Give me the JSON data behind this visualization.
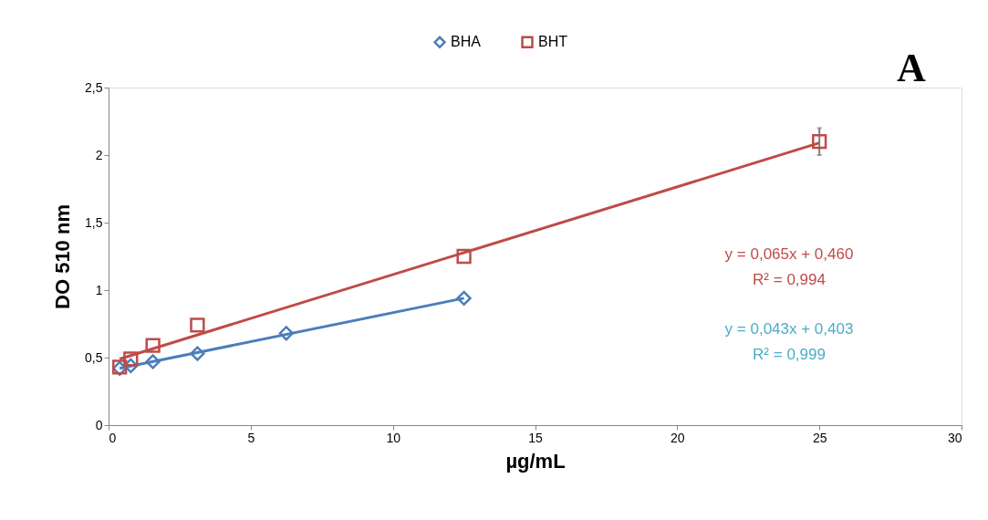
{
  "chart_data": {
    "type": "scatter",
    "title": "A",
    "xlabel": "µg/mL",
    "ylabel": "DO 510 nm",
    "xlim": [
      0,
      30
    ],
    "xticks": [
      0,
      5,
      10,
      15,
      20,
      25,
      30
    ],
    "ylim": [
      0,
      2.5
    ],
    "yticks": [
      {
        "value": 0,
        "label": "0"
      },
      {
        "value": 0.5,
        "label": "0,5"
      },
      {
        "value": 1,
        "label": "1"
      },
      {
        "value": 1.5,
        "label": "1,5"
      },
      {
        "value": 2,
        "label": "2"
      },
      {
        "value": 2.5,
        "label": "2,5"
      }
    ],
    "grid": false,
    "legend": "top",
    "series": [
      {
        "name": "BHA",
        "marker": "diamond",
        "color": "#4a7ebb",
        "x": [
          0.39,
          0.78,
          1.56,
          3.125,
          6.25,
          12.5
        ],
        "values": [
          0.42,
          0.44,
          0.47,
          0.53,
          0.68,
          0.94
        ]
      },
      {
        "name": "BHT",
        "marker": "square",
        "color": "#be4b48",
        "x": [
          0.39,
          0.78,
          1.56,
          3.125,
          12.5,
          25
        ],
        "values": [
          0.43,
          0.49,
          0.59,
          0.74,
          1.25,
          2.1
        ],
        "errors": [
          null,
          null,
          null,
          null,
          null,
          0.1
        ]
      },
      {
        "type": "line",
        "color": "#4a7ebb",
        "x": [
          0.39,
          12.5
        ],
        "values": [
          0.42,
          0.94
        ]
      },
      {
        "type": "line",
        "color": "#be4b48",
        "x": [
          0.39,
          25
        ],
        "values": [
          0.49,
          2.09
        ]
      }
    ],
    "annotations": [
      "y = 0,065x + 0,460",
      "R² = 0,994",
      "y = 0,043x + 0,403",
      "R² = 0,999"
    ]
  }
}
